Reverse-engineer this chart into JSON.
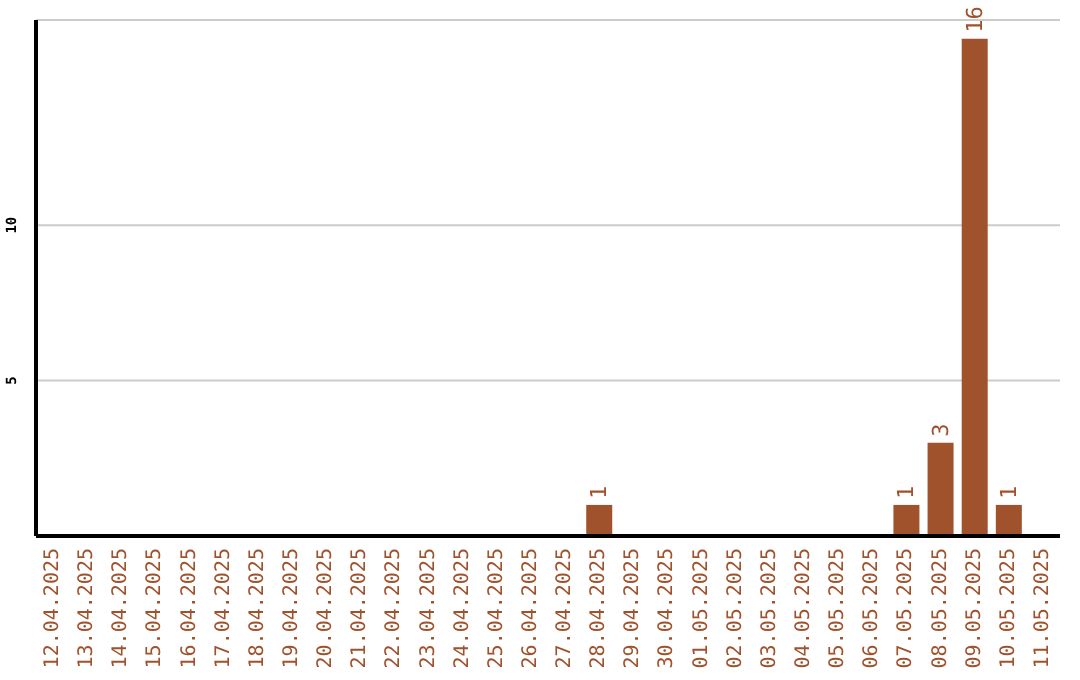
{
  "chart_data": {
    "type": "bar",
    "categories": [
      "12.04.2025",
      "13.04.2025",
      "14.04.2025",
      "15.04.2025",
      "16.04.2025",
      "17.04.2025",
      "18.04.2025",
      "19.04.2025",
      "20.04.2025",
      "21.04.2025",
      "22.04.2025",
      "23.04.2025",
      "24.04.2025",
      "25.04.2025",
      "26.04.2025",
      "27.04.2025",
      "28.04.2025",
      "29.04.2025",
      "30.04.2025",
      "01.05.2025",
      "02.05.2025",
      "03.05.2025",
      "04.05.2025",
      "05.05.2025",
      "06.05.2025",
      "07.05.2025",
      "08.05.2025",
      "09.05.2025",
      "10.05.2025",
      "11.05.2025"
    ],
    "values": [
      0,
      0,
      0,
      0,
      0,
      0,
      0,
      0,
      0,
      0,
      0,
      0,
      0,
      0,
      0,
      0,
      1,
      0,
      0,
      0,
      0,
      0,
      0,
      0,
      0,
      1,
      3,
      16,
      1,
      0
    ],
    "value_labels": [
      null,
      null,
      null,
      null,
      null,
      null,
      null,
      null,
      null,
      null,
      null,
      null,
      null,
      null,
      null,
      null,
      "1",
      null,
      null,
      null,
      null,
      null,
      null,
      null,
      null,
      "1",
      "3",
      "16",
      "1",
      null
    ],
    "color": "#a0522d",
    "ylim": [
      0,
      16.6
    ],
    "yticks": [
      5,
      10
    ],
    "grid": "y"
  }
}
